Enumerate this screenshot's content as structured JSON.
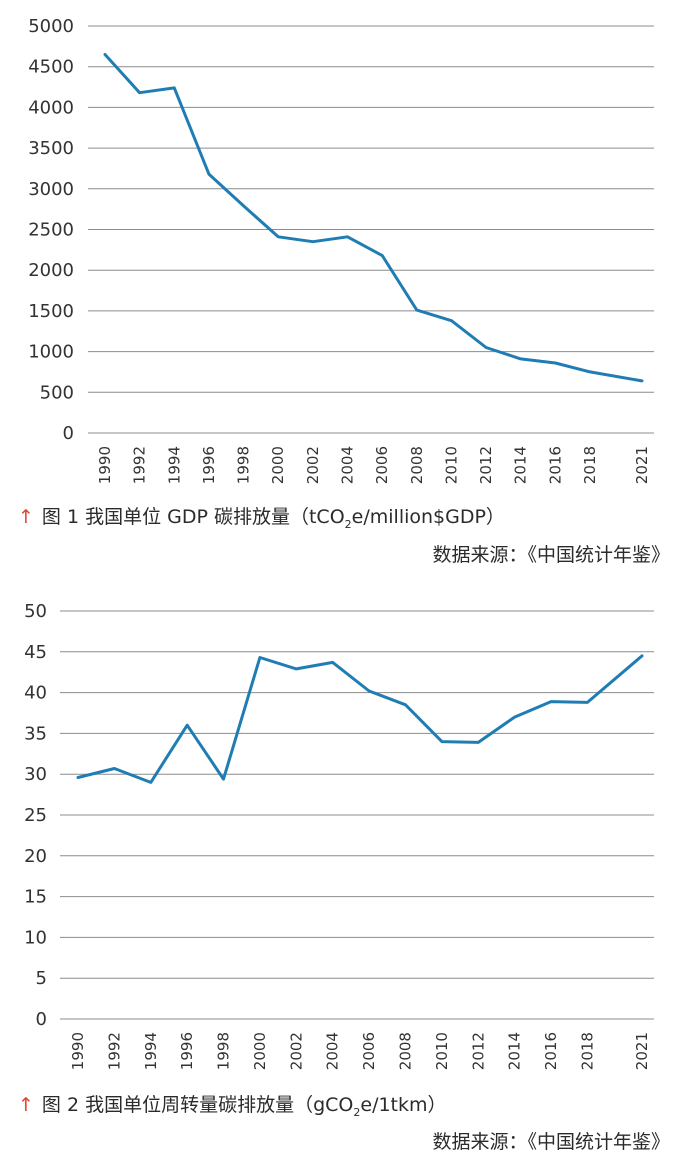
{
  "chart_data": [
    {
      "type": "line",
      "x": [
        "1990",
        "1992",
        "1994",
        "1996",
        "1998",
        "2000",
        "2002",
        "2004",
        "2006",
        "2008",
        "2010",
        "2012",
        "2014",
        "2016",
        "2018",
        "2021"
      ],
      "series": [
        {
          "values": [
            4650,
            4180,
            4240,
            3180,
            2790,
            2410,
            2350,
            2410,
            2180,
            1510,
            1380,
            1050,
            910,
            860,
            750,
            640
          ]
        }
      ],
      "ylim": [
        0,
        5000
      ],
      "yticks": [
        0,
        500,
        1000,
        1500,
        2000,
        2500,
        3000,
        3500,
        4000,
        4500,
        5000
      ],
      "grid": "horizontal",
      "color": "#1f7db3",
      "caption": {
        "marker": "↑",
        "prefix": "图 1  我国单位 GDP 碳排放量（tCO",
        "sub": "2",
        "suffix": "e/million$GDP）"
      },
      "source": "数据来源：《中国统计年鉴》"
    },
    {
      "type": "line",
      "x": [
        "1990",
        "1992",
        "1994",
        "1996",
        "1998",
        "2000",
        "2002",
        "2004",
        "2006",
        "2008",
        "2010",
        "2012",
        "2014",
        "2016",
        "2018",
        "2021"
      ],
      "series": [
        {
          "values": [
            29.6,
            30.7,
            29.0,
            36.0,
            29.4,
            44.3,
            42.9,
            43.7,
            40.2,
            38.5,
            34.0,
            33.9,
            37.0,
            38.9,
            38.8,
            44.5
          ]
        }
      ],
      "ylim": [
        0,
        50
      ],
      "yticks": [
        0,
        5,
        10,
        15,
        20,
        25,
        30,
        35,
        40,
        45,
        50
      ],
      "grid": "horizontal",
      "color": "#1f7db3",
      "caption": {
        "marker": "↑",
        "prefix": "图 2  我国单位周转量碳排放量（gCO",
        "sub": "2",
        "suffix": "e/1tkm）"
      },
      "source": "数据来源：《中国统计年鉴》"
    }
  ]
}
